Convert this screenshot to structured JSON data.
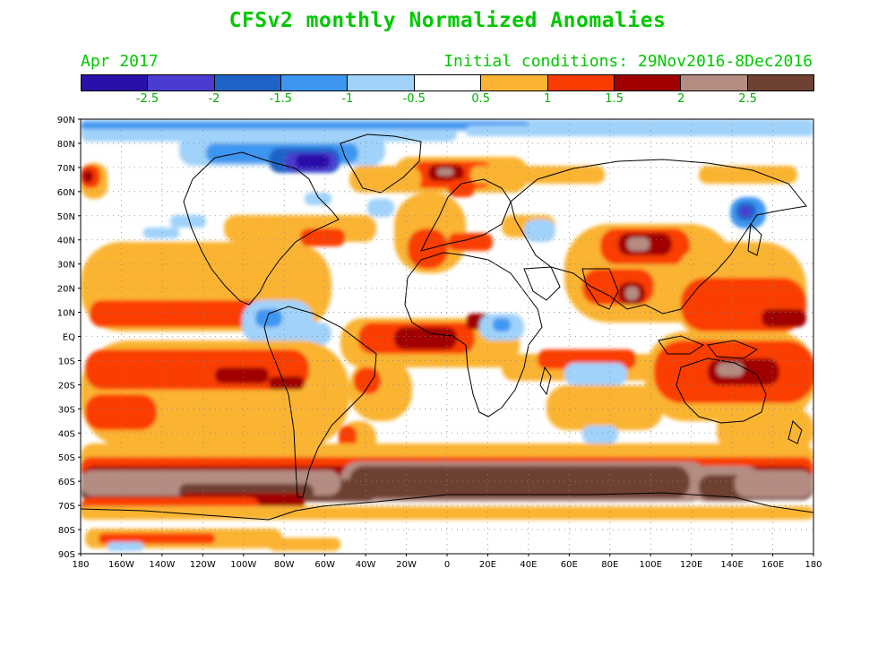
{
  "title": "CFSv2 monthly Normalized Anomalies",
  "target_month": "Apr 2017",
  "initial_conditions": "Initial conditions: 29Nov2016-8Dec2016",
  "colorbar": {
    "colors": [
      "#2a10a8",
      "#4a3cd0",
      "#1e64c8",
      "#3c96f0",
      "#a0d2fa",
      "#ffffff",
      "#fab432",
      "#fa3c00",
      "#a00000",
      "#b48c82",
      "#6e4132"
    ],
    "labels": [
      "-2.5",
      "-2",
      "-1.5",
      "-1",
      "-0.5",
      "0.5",
      "1",
      "1.5",
      "2",
      "2.5"
    ]
  },
  "lat_labels": [
    "90N",
    "80N",
    "70N",
    "60N",
    "50N",
    "40N",
    "30N",
    "20N",
    "10N",
    "EQ",
    "10S",
    "20S",
    "30S",
    "40S",
    "50S",
    "60S",
    "70S",
    "80S",
    "90S"
  ],
  "lon_labels": [
    "180",
    "160W",
    "140W",
    "120W",
    "100W",
    "80W",
    "60W",
    "40W",
    "20W",
    "0",
    "20E",
    "40E",
    "60E",
    "80E",
    "100E",
    "120E",
    "140E",
    "160E",
    "180"
  ],
  "chart_data": {
    "type": "heatmap",
    "title": "CFSv2 monthly Normalized Anomalies",
    "subtitle_left": "Apr 2017",
    "subtitle_right": "Initial conditions: 29Nov2016-8Dec2016",
    "projection": "lat-lon",
    "xlim": [
      "180",
      "180"
    ],
    "ylim": [
      "90S",
      "90N"
    ],
    "color_levels": [
      -2.5,
      -2,
      -1.5,
      -1,
      -0.5,
      0.5,
      1,
      1.5,
      2,
      2.5
    ],
    "grid": true
  }
}
